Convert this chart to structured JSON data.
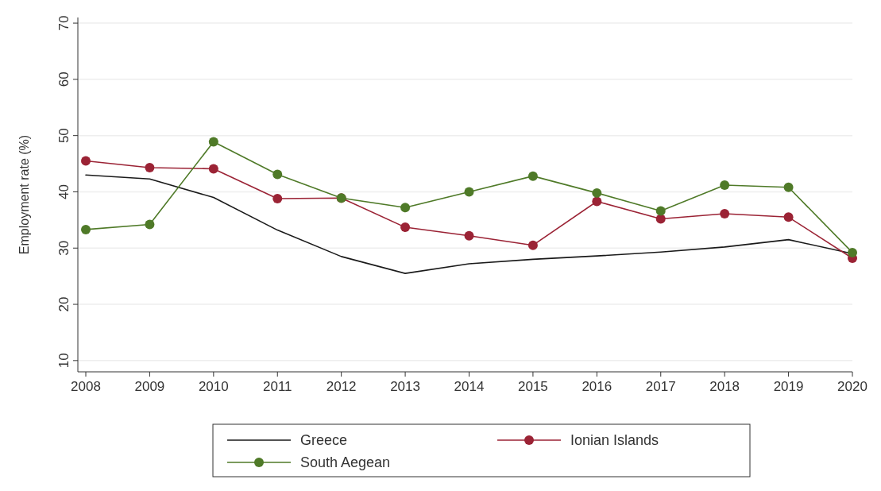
{
  "chart_data": {
    "type": "line",
    "ylabel": "Employment rate (%)",
    "categories": [
      "2008",
      "2009",
      "2010",
      "2011",
      "2012",
      "2013",
      "2014",
      "2015",
      "2016",
      "2017",
      "2018",
      "2019",
      "2020"
    ],
    "ylim": [
      8,
      71
    ],
    "yticks": [
      10,
      20,
      30,
      40,
      50,
      60,
      70
    ],
    "grid": "y",
    "legend": "bottom",
    "series": [
      {
        "name": "Greece",
        "color": "#1a1a1a",
        "marker": "none",
        "values": [
          43,
          42.3,
          39,
          33.2,
          28.5,
          25.5,
          27.2,
          28,
          28.6,
          29.3,
          30.2,
          31.5,
          29
        ]
      },
      {
        "name": "Ionian Islands",
        "color": "#9b2335",
        "marker": "circle",
        "values": [
          45.5,
          44.3,
          44.1,
          38.8,
          38.9,
          33.7,
          32.2,
          30.5,
          38.3,
          35.2,
          36.1,
          35.5,
          28.2
        ]
      },
      {
        "name": "South Aegean",
        "color": "#4f7a28",
        "marker": "circle",
        "values": [
          33.3,
          34.2,
          48.9,
          43.1,
          38.9,
          37.2,
          40,
          42.8,
          39.8,
          36.6,
          41.2,
          40.8,
          29.2
        ]
      }
    ]
  }
}
